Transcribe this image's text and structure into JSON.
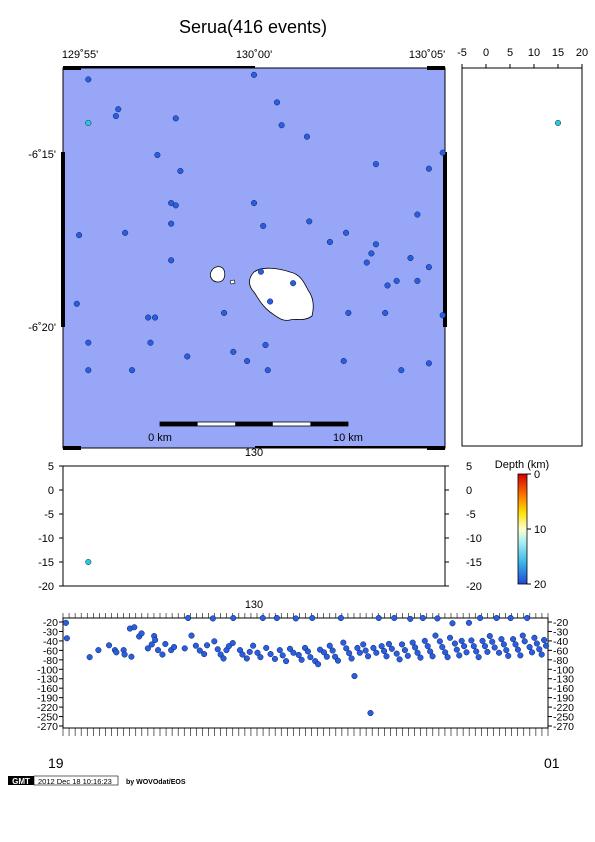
{
  "title": "Serua(416 events)",
  "colors": {
    "sea": "#97a6f7",
    "land": "#ffffff",
    "marker_deep": "#2a5ee0",
    "marker_mid": "#2ac8d8"
  },
  "map": {
    "lon_ticks": [
      "129˚55'",
      "130˚00'",
      "130˚05'"
    ],
    "lat_ticks": [
      "-6˚15'",
      "-6˚20'"
    ],
    "bottom_tick": "130",
    "scale_label_0": "0 km",
    "scale_label_10": "10 km"
  },
  "depth_lon_panel": {
    "x_ticks": [
      "-5",
      "0",
      "5",
      "10",
      "15",
      "20"
    ]
  },
  "lat_depth_panel": {
    "y_ticks": [
      "5",
      "0",
      "-5",
      "-10",
      "-15",
      "-20"
    ],
    "right_ticks": [
      "5",
      "0",
      "-5",
      "-10",
      "-15",
      "-20"
    ],
    "bottom_tick": "130"
  },
  "colorbar": {
    "title": "Depth (km)",
    "ticks": [
      "0",
      "10",
      "20"
    ]
  },
  "time_panel": {
    "top_tick": "130",
    "y_ticks_left": [
      "-20",
      "-30",
      "-40",
      "-60",
      "-80",
      "-100",
      "-130",
      "-160",
      "-190",
      "-220",
      "-250",
      "-270"
    ],
    "y_ticks_right": [
      "-20",
      "-30",
      "-40",
      "-60",
      "-80",
      "-100",
      "-130",
      "-160",
      "-190",
      "-220",
      "-250",
      "-270"
    ],
    "x_first": "19",
    "x_last": "01"
  },
  "footer": {
    "logo": "GMT",
    "timestamp": "2012 Dec 18 10:16:23",
    "credit": "by WOVOdat/EOS"
  },
  "chart_data": [
    {
      "type": "scatter",
      "name": "epicenter map",
      "xlim": [
        129.917,
        130.083
      ],
      "ylim": [
        -6.383,
        -6.217
      ],
      "points": [
        {
          "lon": 129.928,
          "lat": -6.222,
          "depth": 20
        },
        {
          "lon": 129.928,
          "lat": -6.241,
          "depth": 12
        },
        {
          "lon": 129.941,
          "lat": -6.235,
          "depth": 20
        },
        {
          "lon": 129.94,
          "lat": -6.238,
          "depth": 20
        },
        {
          "lon": 129.966,
          "lat": -6.239,
          "depth": 20
        },
        {
          "lon": 130.0,
          "lat": -6.22,
          "depth": 20
        },
        {
          "lon": 130.01,
          "lat": -6.232,
          "depth": 20
        },
        {
          "lon": 130.012,
          "lat": -6.242,
          "depth": 20
        },
        {
          "lon": 130.023,
          "lat": -6.247,
          "depth": 20
        },
        {
          "lon": 129.958,
          "lat": -6.255,
          "depth": 20
        },
        {
          "lon": 129.968,
          "lat": -6.262,
          "depth": 20
        },
        {
          "lon": 130.0,
          "lat": -6.276,
          "depth": 20
        },
        {
          "lon": 129.964,
          "lat": -6.276,
          "depth": 20
        },
        {
          "lon": 129.966,
          "lat": -6.277,
          "depth": 20
        },
        {
          "lon": 129.964,
          "lat": -6.285,
          "depth": 20
        },
        {
          "lon": 129.924,
          "lat": -6.29,
          "depth": 20
        },
        {
          "lon": 129.944,
          "lat": -6.289,
          "depth": 20
        },
        {
          "lon": 130.004,
          "lat": -6.286,
          "depth": 20
        },
        {
          "lon": 130.024,
          "lat": -6.284,
          "depth": 20
        },
        {
          "lon": 130.04,
          "lat": -6.289,
          "depth": 20
        },
        {
          "lon": 130.053,
          "lat": -6.294,
          "depth": 20
        },
        {
          "lon": 130.033,
          "lat": -6.293,
          "depth": 20
        },
        {
          "lon": 130.071,
          "lat": -6.281,
          "depth": 20
        },
        {
          "lon": 130.053,
          "lat": -6.259,
          "depth": 20
        },
        {
          "lon": 130.076,
          "lat": -6.261,
          "depth": 20
        },
        {
          "lon": 130.082,
          "lat": -6.254,
          "depth": 20
        },
        {
          "lon": 129.964,
          "lat": -6.301,
          "depth": 20
        },
        {
          "lon": 130.051,
          "lat": -6.298,
          "depth": 20
        },
        {
          "lon": 130.049,
          "lat": -6.302,
          "depth": 20
        },
        {
          "lon": 130.068,
          "lat": -6.3,
          "depth": 20
        },
        {
          "lon": 130.076,
          "lat": -6.304,
          "depth": 20
        },
        {
          "lon": 130.062,
          "lat": -6.31,
          "depth": 20
        },
        {
          "lon": 130.058,
          "lat": -6.312,
          "depth": 20
        },
        {
          "lon": 130.071,
          "lat": -6.31,
          "depth": 20
        },
        {
          "lon": 130.017,
          "lat": -6.311,
          "depth": 20
        },
        {
          "lon": 130.003,
          "lat": -6.306,
          "depth": 20
        },
        {
          "lon": 129.923,
          "lat": -6.32,
          "depth": 20
        },
        {
          "lon": 129.954,
          "lat": -6.326,
          "depth": 20
        },
        {
          "lon": 129.957,
          "lat": -6.326,
          "depth": 20
        },
        {
          "lon": 129.987,
          "lat": -6.324,
          "depth": 20
        },
        {
          "lon": 130.007,
          "lat": -6.319,
          "depth": 20
        },
        {
          "lon": 130.041,
          "lat": -6.324,
          "depth": 20
        },
        {
          "lon": 130.057,
          "lat": -6.324,
          "depth": 20
        },
        {
          "lon": 130.082,
          "lat": -6.325,
          "depth": 20
        },
        {
          "lon": 129.928,
          "lat": -6.337,
          "depth": 20
        },
        {
          "lon": 129.955,
          "lat": -6.337,
          "depth": 20
        },
        {
          "lon": 129.971,
          "lat": -6.343,
          "depth": 20
        },
        {
          "lon": 129.991,
          "lat": -6.341,
          "depth": 20
        },
        {
          "lon": 129.997,
          "lat": -6.345,
          "depth": 20
        },
        {
          "lon": 130.005,
          "lat": -6.338,
          "depth": 20
        },
        {
          "lon": 130.039,
          "lat": -6.345,
          "depth": 20
        },
        {
          "lon": 129.928,
          "lat": -6.349,
          "depth": 20
        },
        {
          "lon": 129.947,
          "lat": -6.349,
          "depth": 20
        },
        {
          "lon": 130.006,
          "lat": -6.349,
          "depth": 20
        },
        {
          "lon": 130.064,
          "lat": -6.349,
          "depth": 20
        },
        {
          "lon": 130.076,
          "lat": -6.346,
          "depth": 20
        }
      ]
    },
    {
      "type": "scatter",
      "name": "depth panel (right)",
      "xlim": [
        -5,
        20
      ],
      "points": [
        {
          "depth": 15,
          "lat": -6.241
        }
      ]
    },
    {
      "type": "scatter",
      "name": "longitude-depth section",
      "ylim": [
        -20,
        5
      ],
      "points": [
        {
          "lon": 129.928,
          "depth": -15
        }
      ]
    },
    {
      "type": "scatter",
      "name": "time-depth plot",
      "ylim": [
        -270,
        -20
      ],
      "points": [
        [
          0.006,
          -31
        ],
        [
          0.008,
          -66
        ],
        [
          0.055,
          -109
        ],
        [
          0.073,
          -93
        ],
        [
          0.095,
          -82
        ],
        [
          0.107,
          -93
        ],
        [
          0.11,
          -98
        ],
        [
          0.125,
          -93
        ],
        [
          0.127,
          -103
        ],
        [
          0.141,
          -108
        ],
        [
          0.138,
          -44
        ],
        [
          0.147,
          -41
        ],
        [
          0.157,
          -62
        ],
        [
          0.162,
          -55
        ],
        [
          0.175,
          -89
        ],
        [
          0.183,
          -80
        ],
        [
          0.188,
          -61
        ],
        [
          0.19,
          -70
        ],
        [
          0.196,
          -93
        ],
        [
          0.205,
          -103
        ],
        [
          0.211,
          -79
        ],
        [
          0.223,
          -93
        ],
        [
          0.229,
          -86
        ],
        [
          0.251,
          -89
        ],
        [
          0.258,
          -20
        ],
        [
          0.265,
          -60
        ],
        [
          0.274,
          -83
        ],
        [
          0.282,
          -94
        ],
        [
          0.291,
          -102
        ],
        [
          0.297,
          -82
        ],
        [
          0.309,
          -21
        ],
        [
          0.312,
          -73
        ],
        [
          0.319,
          -91
        ],
        [
          0.325,
          -103
        ],
        [
          0.331,
          -112
        ],
        [
          0.337,
          -93
        ],
        [
          0.342,
          -84
        ],
        [
          0.35,
          -77
        ],
        [
          0.351,
          -20
        ],
        [
          0.365,
          -93
        ],
        [
          0.37,
          -103
        ],
        [
          0.379,
          -112
        ],
        [
          0.385,
          -97
        ],
        [
          0.392,
          -83
        ],
        [
          0.401,
          -99
        ],
        [
          0.407,
          -109
        ],
        [
          0.412,
          -20
        ],
        [
          0.419,
          -88
        ],
        [
          0.428,
          -102
        ],
        [
          0.437,
          -113
        ],
        [
          0.441,
          -20
        ],
        [
          0.447,
          -93
        ],
        [
          0.453,
          -105
        ],
        [
          0.46,
          -118
        ],
        [
          0.468,
          -90
        ],
        [
          0.475,
          -99
        ],
        [
          0.48,
          -21
        ],
        [
          0.486,
          -104
        ],
        [
          0.492,
          -115
        ],
        [
          0.499,
          -88
        ],
        [
          0.505,
          -96
        ],
        [
          0.51,
          -109
        ],
        [
          0.514,
          -20
        ],
        [
          0.52,
          -118
        ],
        [
          0.526,
          -125
        ],
        [
          0.53,
          -92
        ],
        [
          0.538,
          -98
        ],
        [
          0.544,
          -108
        ],
        [
          0.55,
          -83
        ],
        [
          0.556,
          -94
        ],
        [
          0.561,
          -108
        ],
        [
          0.567,
          -117
        ],
        [
          0.573,
          -20
        ],
        [
          0.578,
          -76
        ],
        [
          0.584,
          -89
        ],
        [
          0.59,
          -100
        ],
        [
          0.595,
          -112
        ],
        [
          0.601,
          -152
        ],
        [
          0.607,
          -88
        ],
        [
          0.612,
          -99
        ],
        [
          0.619,
          -80
        ],
        [
          0.624,
          -94
        ],
        [
          0.629,
          -107
        ],
        [
          0.634,
          -236
        ],
        [
          0.64,
          -88
        ],
        [
          0.646,
          -99
        ],
        [
          0.651,
          -20
        ],
        [
          0.657,
          -84
        ],
        [
          0.662,
          -95
        ],
        [
          0.667,
          -107
        ],
        [
          0.672,
          -79
        ],
        [
          0.678,
          -90
        ],
        [
          0.683,
          -20
        ],
        [
          0.688,
          -101
        ],
        [
          0.694,
          -114
        ],
        [
          0.699,
          -80
        ],
        [
          0.705,
          -93
        ],
        [
          0.711,
          -106
        ],
        [
          0.716,
          -22
        ],
        [
          0.721,
          -76
        ],
        [
          0.726,
          -87
        ],
        [
          0.731,
          -99
        ],
        [
          0.737,
          -110
        ],
        [
          0.742,
          -20
        ],
        [
          0.746,
          -72
        ],
        [
          0.752,
          -84
        ],
        [
          0.757,
          -96
        ],
        [
          0.762,
          -107
        ],
        [
          0.768,
          -60
        ],
        [
          0.772,
          -21
        ],
        [
          0.777,
          -73
        ],
        [
          0.782,
          -86
        ],
        [
          0.788,
          -98
        ],
        [
          0.793,
          -109
        ],
        [
          0.798,
          -65
        ],
        [
          0.803,
          -32
        ],
        [
          0.808,
          -78
        ],
        [
          0.812,
          -92
        ],
        [
          0.817,
          -105
        ],
        [
          0.822,
          -72
        ],
        [
          0.827,
          -84
        ],
        [
          0.832,
          -98
        ],
        [
          0.837,
          -31
        ],
        [
          0.842,
          -71
        ],
        [
          0.847,
          -84
        ],
        [
          0.852,
          -96
        ],
        [
          0.857,
          -109
        ],
        [
          0.86,
          -20
        ],
        [
          0.865,
          -72
        ],
        [
          0.87,
          -84
        ],
        [
          0.875,
          -97
        ],
        [
          0.88,
          -61
        ],
        [
          0.885,
          -74
        ],
        [
          0.89,
          -87
        ],
        [
          0.894,
          -20
        ],
        [
          0.899,
          -99
        ],
        [
          0.904,
          -68
        ],
        [
          0.909,
          -80
        ],
        [
          0.914,
          -93
        ],
        [
          0.918,
          -106
        ],
        [
          0.923,
          -20
        ],
        [
          0.928,
          -68
        ],
        [
          0.933,
          -80
        ],
        [
          0.938,
          -92
        ],
        [
          0.943,
          -105
        ],
        [
          0.948,
          -60
        ],
        [
          0.952,
          -73
        ],
        [
          0.957,
          -20
        ],
        [
          0.962,
          -86
        ],
        [
          0.967,
          -98
        ],
        [
          0.972,
          -65
        ],
        [
          0.977,
          -78
        ],
        [
          0.982,
          -91
        ],
        [
          0.987,
          -103
        ],
        [
          0.992,
          -70
        ],
        [
          0.996,
          -83
        ]
      ]
    },
    {
      "type": "heatmap",
      "name": "depth colorbar",
      "title": "Depth (km)",
      "ylim": [
        0,
        20
      ]
    }
  ]
}
